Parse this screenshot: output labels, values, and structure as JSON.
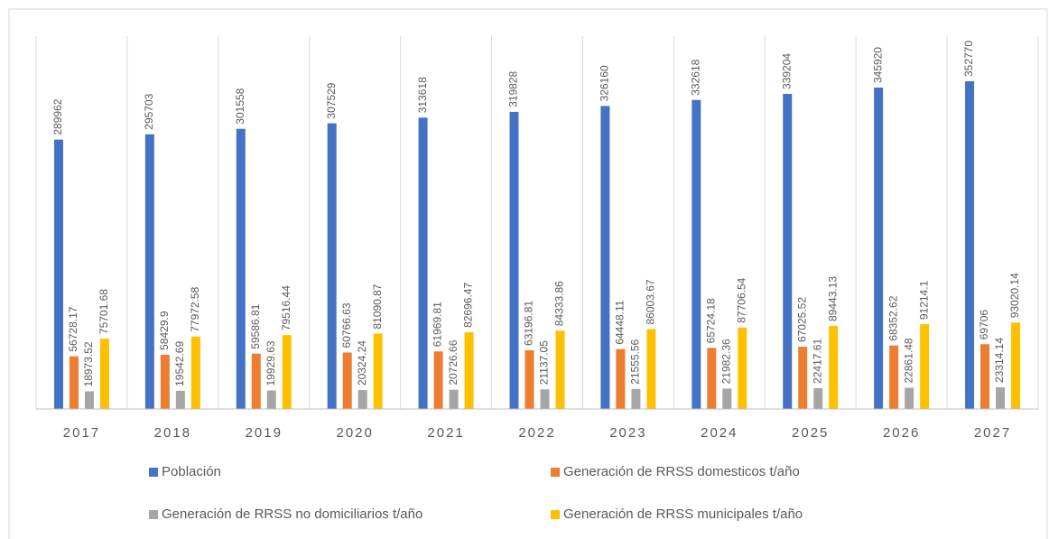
{
  "chart_data": {
    "type": "bar",
    "categories": [
      "2017",
      "2018",
      "2019",
      "2020",
      "2021",
      "2022",
      "2023",
      "2024",
      "2025",
      "2026",
      "2027"
    ],
    "series": [
      {
        "name": "Población",
        "color": "#4472c4",
        "values": [
          289962,
          295703,
          301558,
          307529,
          313618,
          319828,
          326160,
          332618,
          339204,
          345920,
          352770
        ]
      },
      {
        "name": "Generación de RRSS domesticos t/año",
        "color": "#ed7d31",
        "values": [
          56728.17,
          58429.9,
          59586.81,
          60766.63,
          61969.81,
          63196.81,
          64448.11,
          65724.18,
          67025.52,
          68352.62,
          69706
        ]
      },
      {
        "name": "Generación de RRSS no domiciliarios t/año",
        "color": "#a5a5a5",
        "values": [
          18973.52,
          19542.69,
          19929.63,
          20324.24,
          20726.66,
          21137.05,
          21555.56,
          21982.36,
          22417.61,
          22861.48,
          23314.14
        ]
      },
      {
        "name": "Generación de RRSS municipales t/año",
        "color": "#ffc000",
        "values": [
          75701.68,
          77972.58,
          79516.44,
          81090.87,
          82696.47,
          84333.86,
          86003.67,
          87706.54,
          89443.13,
          91214.1,
          93020.14
        ]
      }
    ]
  }
}
